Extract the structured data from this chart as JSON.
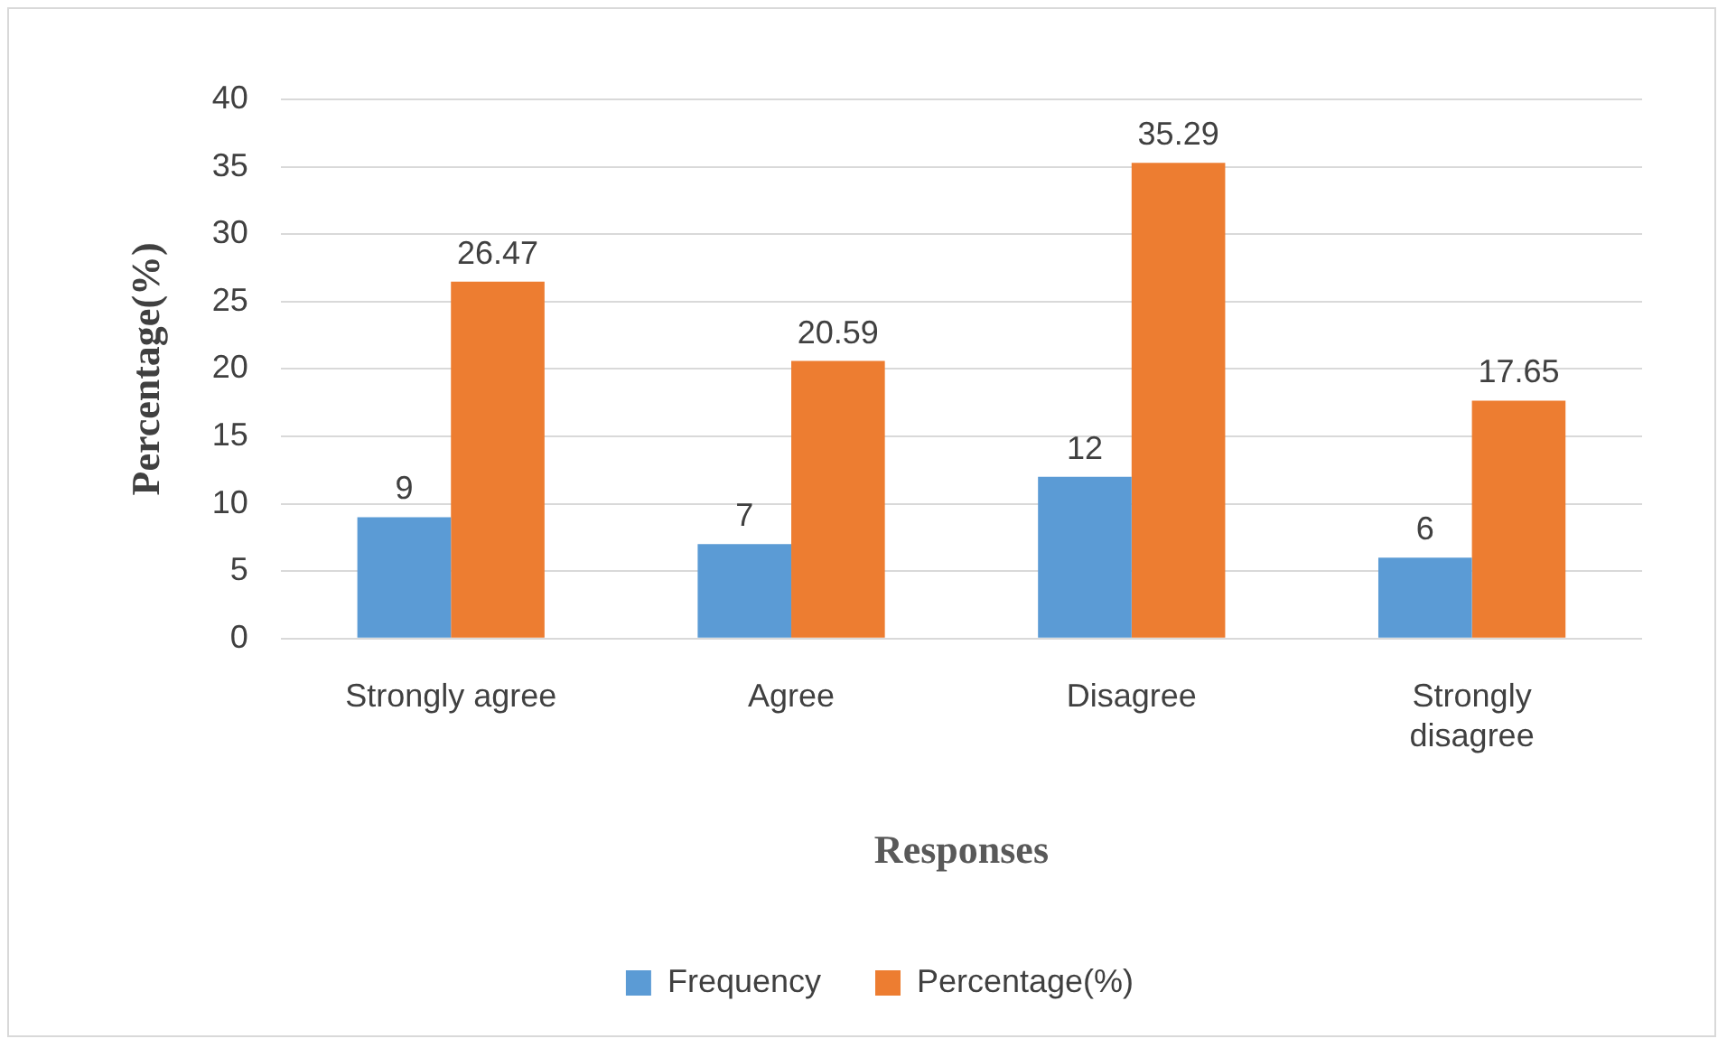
{
  "chart_data": {
    "type": "bar",
    "xlabel": "Responses",
    "ylabel": "Percentage(%)",
    "categories": [
      "Strongly agree",
      "Agree",
      "Disagree",
      "Strongly disagree"
    ],
    "series": [
      {
        "name": "Frequency",
        "color": "#5b9bd5",
        "values": [
          9,
          7,
          12,
          6
        ]
      },
      {
        "name": "Percentage(%)",
        "color": "#ed7d31",
        "values": [
          26.47,
          20.59,
          35.29,
          17.65
        ]
      }
    ],
    "ylim": [
      0,
      40
    ],
    "yticks": [
      0,
      5,
      10,
      15,
      20,
      25,
      30,
      35,
      40
    ],
    "grid": "y",
    "legend": "bottom",
    "data_labels": true
  }
}
